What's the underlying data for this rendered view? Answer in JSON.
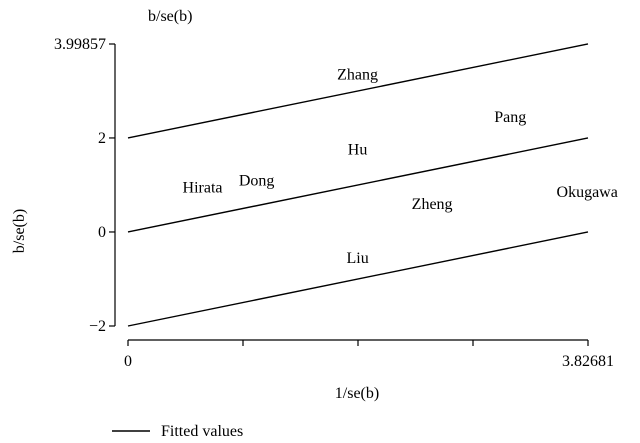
{
  "chart_data": {
    "type": "scatter",
    "title": "",
    "xlabel": "1/se(b)",
    "ylabel": "b/se(b)",
    "y_top_label": "b/se(b)",
    "xlim": [
      0,
      3.82681
    ],
    "ylim": [
      -2,
      3.99857
    ],
    "x_ticks": [
      {
        "value": 0,
        "label": "0"
      },
      {
        "value": 0.9567,
        "label": ""
      },
      {
        "value": 1.91341,
        "label": ""
      },
      {
        "value": 2.87011,
        "label": ""
      },
      {
        "value": 3.82681,
        "label": "3.82681"
      }
    ],
    "y_ticks": [
      {
        "value": -2,
        "label": "−2"
      },
      {
        "value": 0,
        "label": "0"
      },
      {
        "value": 2,
        "label": "2"
      },
      {
        "value": 3.99857,
        "label": "3.99857"
      }
    ],
    "points": [
      {
        "label": "Zhang",
        "x": 1.91,
        "y": 3.35
      },
      {
        "label": "Pang",
        "x": 3.18,
        "y": 2.45
      },
      {
        "label": "Hu",
        "x": 1.91,
        "y": 1.75
      },
      {
        "label": "Hirata",
        "x": 0.62,
        "y": 0.95
      },
      {
        "label": "Dong",
        "x": 1.07,
        "y": 1.1
      },
      {
        "label": "Zheng",
        "x": 2.53,
        "y": 0.6
      },
      {
        "label": "Okugawa",
        "x": 3.82,
        "y": 0.85
      },
      {
        "label": "Liu",
        "x": 1.91,
        "y": -0.55
      }
    ],
    "lines": [
      {
        "x": [
          0,
          3.82681
        ],
        "y": [
          2,
          4
        ]
      },
      {
        "x": [
          0,
          3.82681
        ],
        "y": [
          0,
          2
        ]
      },
      {
        "x": [
          0,
          3.82681
        ],
        "y": [
          -2,
          0
        ]
      }
    ],
    "legend": {
      "position": "bottom-left",
      "entries": [
        "Fitted values"
      ]
    },
    "grid": false
  }
}
